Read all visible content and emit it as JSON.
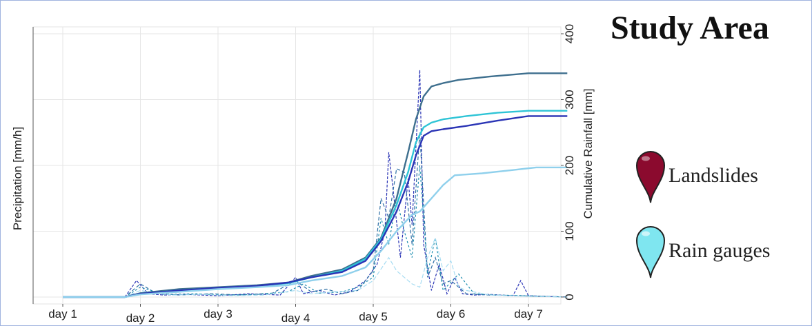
{
  "title": "Study Area",
  "legend": [
    {
      "label": "Landslides",
      "icon": "landslide-pin-icon",
      "color": "#8b0a2e"
    },
    {
      "label": "Rain gauges",
      "icon": "rain-gauge-pin-icon",
      "color": "#7fe6f0"
    }
  ],
  "chart_data": {
    "type": "line",
    "xlabel": "",
    "ylabel_left": "Precipitation [mm/h]",
    "ylabel_right": "Cumulative Rainfall [mm]",
    "x_ticks": [
      "day 1",
      "day 2",
      "day 3",
      "day 4",
      "day 5",
      "day 6",
      "day 7"
    ],
    "xlim": [
      1,
      7.5
    ],
    "ylim_right": [
      0,
      400
    ],
    "y_ticks_right": [
      "0",
      "100",
      "200",
      "300",
      "400"
    ],
    "grid": true,
    "cumulative_series": [
      {
        "color": "#3e6f8e",
        "x": [
          1.0,
          1.8,
          2.0,
          2.5,
          3.0,
          3.5,
          3.9,
          4.2,
          4.6,
          4.9,
          5.1,
          5.3,
          5.45,
          5.55,
          5.65,
          5.75,
          5.9,
          6.1,
          6.5,
          7.0,
          7.5
        ],
        "y": [
          0,
          0,
          6,
          12,
          15,
          18,
          22,
          32,
          42,
          60,
          90,
          150,
          220,
          270,
          305,
          320,
          325,
          330,
          335,
          340,
          340
        ]
      },
      {
        "color": "#2ec4d6",
        "x": [
          1.0,
          1.8,
          2.0,
          2.5,
          3.0,
          3.5,
          3.9,
          4.2,
          4.6,
          4.9,
          5.1,
          5.3,
          5.45,
          5.55,
          5.65,
          5.75,
          5.9,
          6.2,
          6.6,
          7.0,
          7.5
        ],
        "y": [
          0,
          0,
          5,
          10,
          14,
          17,
          21,
          30,
          40,
          58,
          88,
          140,
          190,
          235,
          258,
          265,
          270,
          275,
          280,
          283,
          283
        ]
      },
      {
        "color": "#2a34b5",
        "x": [
          1.0,
          1.8,
          2.0,
          2.5,
          3.0,
          3.5,
          3.9,
          4.2,
          4.6,
          4.9,
          5.1,
          5.3,
          5.45,
          5.55,
          5.65,
          5.75,
          5.9,
          6.2,
          6.6,
          7.0,
          7.5
        ],
        "y": [
          0,
          0,
          5,
          10,
          14,
          17,
          22,
          30,
          38,
          55,
          85,
          130,
          175,
          215,
          245,
          252,
          255,
          260,
          268,
          275,
          275
        ]
      },
      {
        "color": "#8fd0ec",
        "x": [
          1.0,
          1.8,
          2.0,
          2.5,
          3.0,
          3.5,
          3.9,
          4.2,
          4.6,
          4.9,
          5.1,
          5.3,
          5.5,
          5.6,
          5.75,
          5.9,
          6.05,
          6.4,
          6.8,
          7.1,
          7.5
        ],
        "y": [
          0,
          0,
          4,
          8,
          12,
          15,
          18,
          25,
          32,
          45,
          70,
          100,
          125,
          130,
          150,
          170,
          185,
          188,
          193,
          197,
          197
        ]
      }
    ],
    "hourly_series": [
      {
        "color": "#2a34b5",
        "dash": "4,2",
        "x": [
          1.0,
          1.8,
          1.95,
          2.1,
          2.3,
          2.6,
          3.0,
          3.4,
          3.8,
          4.0,
          4.1,
          4.3,
          4.5,
          4.7,
          4.9,
          5.05,
          5.15,
          5.2,
          5.25,
          5.35,
          5.45,
          5.5,
          5.6,
          5.65,
          5.75,
          5.85,
          5.95,
          6.05,
          6.15,
          6.3,
          6.5,
          6.8,
          6.9,
          7.0,
          7.5
        ],
        "y": [
          0,
          0,
          25,
          5,
          3,
          4,
          2,
          5,
          3,
          30,
          5,
          10,
          3,
          8,
          25,
          50,
          100,
          220,
          170,
          60,
          180,
          110,
          345,
          80,
          10,
          50,
          5,
          30,
          5,
          3,
          4,
          2,
          25,
          2,
          0
        ]
      },
      {
        "color": "#2e6fa5",
        "dash": "5,3",
        "x": [
          1.0,
          1.8,
          2.0,
          2.2,
          2.5,
          2.9,
          3.3,
          3.7,
          4.0,
          4.2,
          4.4,
          4.6,
          4.8,
          5.0,
          5.1,
          5.2,
          5.3,
          5.4,
          5.5,
          5.6,
          5.7,
          5.8,
          5.9,
          6.0,
          6.2,
          6.5,
          6.9,
          7.5
        ],
        "y": [
          0,
          0,
          20,
          6,
          3,
          5,
          3,
          6,
          25,
          8,
          12,
          5,
          10,
          40,
          150,
          120,
          195,
          190,
          80,
          250,
          30,
          60,
          20,
          25,
          5,
          3,
          2,
          0
        ]
      },
      {
        "color": "#1f8fb0",
        "dash": "3,3",
        "x": [
          1.0,
          1.8,
          2.0,
          2.3,
          2.7,
          3.1,
          3.5,
          3.9,
          4.1,
          4.3,
          4.6,
          4.8,
          5.0,
          5.1,
          5.2,
          5.3,
          5.4,
          5.5,
          5.6,
          5.7,
          5.8,
          5.9,
          6.1,
          6.3,
          6.6,
          7.0,
          7.5
        ],
        "y": [
          0,
          0,
          15,
          4,
          5,
          3,
          4,
          8,
          20,
          6,
          8,
          15,
          30,
          120,
          80,
          150,
          100,
          60,
          200,
          35,
          90,
          10,
          35,
          5,
          3,
          2,
          0
        ]
      },
      {
        "color": "#a6dcf2",
        "dash": "6,3",
        "x": [
          1.0,
          1.8,
          2.0,
          2.4,
          2.8,
          3.2,
          3.6,
          4.0,
          4.2,
          4.5,
          4.8,
          5.0,
          5.2,
          5.3,
          5.4,
          5.5,
          5.6,
          5.7,
          5.8,
          5.9,
          6.0,
          6.1,
          6.2,
          6.5,
          7.0,
          7.5
        ],
        "y": [
          0,
          0,
          10,
          3,
          4,
          2,
          3,
          10,
          5,
          8,
          10,
          25,
          60,
          40,
          30,
          20,
          15,
          60,
          90,
          40,
          55,
          15,
          10,
          3,
          1,
          0
        ]
      }
    ]
  }
}
